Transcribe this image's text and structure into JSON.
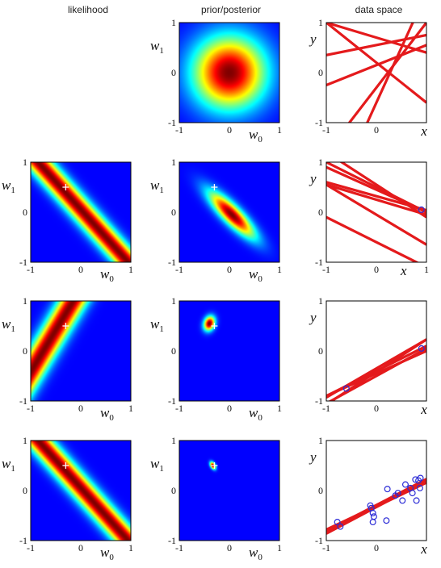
{
  "column_titles": [
    "likelihood",
    "prior/posterior",
    "data space"
  ],
  "colors": {
    "line": "#e41a1c",
    "point": "#2b2bd6",
    "true_w": "#ffffff",
    "heat_bg": "#00008f"
  },
  "chart_data": [
    {
      "type": "heatmap",
      "row": 0,
      "panel": "prior/posterior",
      "xlabel": "w0",
      "ylabel": "w1",
      "xlim": [
        -1,
        1
      ],
      "ylim": [
        -1,
        1
      ],
      "xticks": [
        "-1",
        "0",
        "1"
      ],
      "yticks": [
        "-1",
        "0",
        "1"
      ],
      "gaussian": {
        "mean": [
          0,
          0
        ],
        "cov": [
          [
            0.25,
            0
          ],
          [
            0,
            0.25
          ]
        ]
      }
    },
    {
      "type": "line",
      "row": 0,
      "panel": "data space",
      "xlabel": "x",
      "ylabel": "y",
      "xlim": [
        -1,
        1
      ],
      "ylim": [
        -1,
        1
      ],
      "xticks": [
        "-1",
        "0",
        "x"
      ],
      "yticks": [
        "-1",
        "0",
        "1"
      ],
      "lines": [
        [
          -0.6,
          2.2
        ],
        [
          0.55,
          0.2
        ],
        [
          0.2,
          -0.8
        ],
        [
          -0.3,
          1.3
        ],
        [
          0.7,
          -0.3
        ],
        [
          0.15,
          0.4
        ]
      ],
      "points": []
    },
    {
      "type": "heatmap",
      "row": 1,
      "panel": "likelihood",
      "xlabel": "w0",
      "ylabel": "w1",
      "xlim": [
        -1,
        1
      ],
      "ylim": [
        -1,
        1
      ],
      "xticks": [
        "-1",
        "0",
        "1"
      ],
      "yticks": [
        "-1",
        "0",
        "1"
      ],
      "band": {
        "x": 0.9,
        "y": 0.05,
        "sigma": 0.2
      },
      "true_w": [
        -0.3,
        0.5
      ]
    },
    {
      "type": "heatmap",
      "row": 1,
      "panel": "prior/posterior",
      "xlabel": "w0",
      "ylabel": "w1",
      "xlim": [
        -1,
        1
      ],
      "ylim": [
        -1,
        1
      ],
      "xticks": [
        "-1",
        "0",
        "1"
      ],
      "yticks": [
        "-1",
        "0",
        "1"
      ],
      "gaussian": {
        "mean": [
          0.05,
          -0.05
        ],
        "cov": [
          [
            0.1,
            -0.085
          ],
          [
            -0.085,
            0.1
          ]
        ]
      },
      "true_w": [
        -0.3,
        0.5
      ]
    },
    {
      "type": "line",
      "row": 1,
      "panel": "data space",
      "xlabel": "x",
      "ylabel": "y",
      "xlim": [
        -1,
        1
      ],
      "ylim": [
        -1,
        1
      ],
      "xticks": [
        "-1",
        "0",
        "1"
      ],
      "yticks": [
        "-1",
        "0",
        "1"
      ],
      "lines": [
        [
          0.45,
          -0.45
        ],
        [
          0.32,
          -0.28
        ],
        [
          0.25,
          -0.3
        ],
        [
          0.55,
          -0.65
        ],
        [
          0.5,
          -0.5
        ],
        [
          -0.6,
          -0.5
        ],
        [
          -0.05,
          -0.6
        ]
      ],
      "points": [
        [
          0.9,
          0.05
        ]
      ]
    },
    {
      "type": "heatmap",
      "row": 2,
      "panel": "likelihood",
      "xlabel": "w0",
      "ylabel": "w1",
      "xlim": [
        -1,
        1
      ],
      "ylim": [
        -1,
        1
      ],
      "xticks": [
        "-1",
        "0",
        "1"
      ],
      "yticks": [
        "-1",
        "0",
        "1"
      ],
      "band": {
        "x": -0.6,
        "y": -0.75,
        "sigma": 0.2
      },
      "true_w": [
        -0.3,
        0.5
      ]
    },
    {
      "type": "heatmap",
      "row": 2,
      "panel": "prior/posterior",
      "xlabel": "w0",
      "ylabel": "w1",
      "xlim": [
        -1,
        1
      ],
      "ylim": [
        -1,
        1
      ],
      "xticks": [
        "-1",
        "0",
        "1"
      ],
      "yticks": [
        "-1",
        "0",
        "1"
      ],
      "gaussian": {
        "mean": [
          -0.4,
          0.55
        ],
        "cov": [
          [
            0.006,
            0.0015
          ],
          [
            0.0015,
            0.01
          ]
        ]
      },
      "true_w": [
        -0.3,
        0.5
      ]
    },
    {
      "type": "line",
      "row": 2,
      "panel": "data space",
      "xlabel": "x",
      "ylabel": "y",
      "xlim": [
        -1,
        1
      ],
      "ylim": [
        -1,
        1
      ],
      "xticks": [
        "-1",
        "0",
        "x"
      ],
      "yticks": [
        "-1",
        "0",
        "1"
      ],
      "lines": [
        [
          -0.5,
          0.55
        ],
        [
          -0.4,
          0.5
        ],
        [
          -0.42,
          0.65
        ],
        [
          -0.45,
          0.45
        ],
        [
          -0.35,
          0.58
        ]
      ],
      "points": [
        [
          -0.6,
          -0.75
        ],
        [
          0.9,
          0.05
        ]
      ]
    },
    {
      "type": "heatmap",
      "row": 3,
      "panel": "likelihood",
      "xlabel": "w0",
      "ylabel": "w1",
      "xlim": [
        -1,
        1
      ],
      "ylim": [
        -1,
        1
      ],
      "xticks": [
        "-1",
        "0",
        "1"
      ],
      "yticks": [
        "-1",
        "0",
        "1"
      ],
      "band": {
        "x": 0.9,
        "y": 0.05,
        "sigma": 0.2
      },
      "true_w": [
        -0.3,
        0.5
      ]
    },
    {
      "type": "heatmap",
      "row": 3,
      "panel": "prior/posterior",
      "xlabel": "w0",
      "ylabel": "w1",
      "xlim": [
        -1,
        1
      ],
      "ylim": [
        -1,
        1
      ],
      "xticks": [
        "-1",
        "0",
        "1"
      ],
      "yticks": [
        "-1",
        "0",
        "1"
      ],
      "gaussian": {
        "mean": [
          -0.33,
          0.5
        ],
        "cov": [
          [
            0.0015,
            -0.0008
          ],
          [
            -0.0008,
            0.0025
          ]
        ]
      },
      "true_w": [
        -0.3,
        0.5
      ]
    },
    {
      "type": "line",
      "row": 3,
      "panel": "data space",
      "xlabel": "x",
      "ylabel": "y",
      "xlim": [
        -1,
        1
      ],
      "ylim": [
        -1,
        1
      ],
      "xticks": [
        "-1",
        "0",
        "x"
      ],
      "yticks": [
        "-1",
        "0",
        "1"
      ],
      "lines": [
        [
          -0.3,
          0.5
        ],
        [
          -0.32,
          0.48
        ],
        [
          -0.29,
          0.52
        ],
        [
          -0.33,
          0.53
        ],
        [
          -0.31,
          0.47
        ]
      ],
      "points": [
        [
          -0.78,
          -0.63
        ],
        [
          -0.72,
          -0.72
        ],
        [
          -0.12,
          -0.3
        ],
        [
          -0.1,
          -0.35
        ],
        [
          -0.07,
          -0.45
        ],
        [
          -0.05,
          -0.52
        ],
        [
          -0.07,
          -0.63
        ],
        [
          0.2,
          -0.6
        ],
        [
          0.22,
          0.03
        ],
        [
          0.38,
          -0.1
        ],
        [
          0.43,
          -0.05
        ],
        [
          0.52,
          -0.2
        ],
        [
          0.58,
          0.12
        ],
        [
          0.68,
          0.05
        ],
        [
          0.72,
          -0.05
        ],
        [
          0.78,
          0.22
        ],
        [
          0.8,
          -0.2
        ],
        [
          0.84,
          0.2
        ],
        [
          0.87,
          0.05
        ],
        [
          0.88,
          0.25
        ]
      ]
    }
  ]
}
